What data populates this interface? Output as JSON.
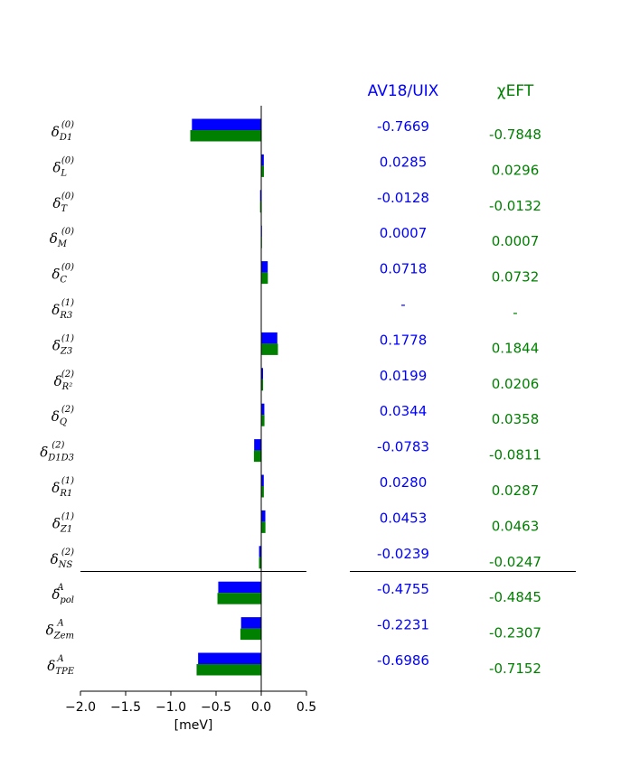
{
  "chart_data": {
    "type": "bar",
    "orientation": "horizontal",
    "categories": [
      {
        "sym": "δ",
        "sup": "(0)",
        "sub": "D1"
      },
      {
        "sym": "δ",
        "sup": "(0)",
        "sub": "L"
      },
      {
        "sym": "δ",
        "sup": "(0)",
        "sub": "T"
      },
      {
        "sym": "δ",
        "sup": "(0)",
        "sub": "M"
      },
      {
        "sym": "δ",
        "sup": "(0)",
        "sub": "C"
      },
      {
        "sym": "δ",
        "sup": "(1)",
        "sub": "R3"
      },
      {
        "sym": "δ",
        "sup": "(1)",
        "sub": "Z3"
      },
      {
        "sym": "δ",
        "sup": "(2)",
        "sub": "R²"
      },
      {
        "sym": "δ",
        "sup": "(2)",
        "sub": "Q"
      },
      {
        "sym": "δ",
        "sup": "(2)",
        "sub": "D1D3"
      },
      {
        "sym": "δ",
        "sup": "(1)",
        "sub": "R1"
      },
      {
        "sym": "δ",
        "sup": "(1)",
        "sub": "Z1"
      },
      {
        "sym": "δ",
        "sup": "(2)",
        "sub": "NS"
      },
      {
        "sym": "δ",
        "sup": "A",
        "sub": "pol"
      },
      {
        "sym": "δ",
        "sup": "A",
        "sub": "Zem"
      },
      {
        "sym": "δ",
        "sup": "A",
        "sub": "TPE"
      }
    ],
    "series": [
      {
        "name": "AV18/UIX",
        "color": "#0000ff",
        "values": [
          -0.7669,
          0.0285,
          -0.0128,
          0.0007,
          0.0718,
          null,
          0.1778,
          0.0199,
          0.0344,
          -0.0783,
          0.028,
          0.0453,
          -0.0239,
          -0.4755,
          -0.2231,
          -0.6986
        ],
        "labels": [
          "-0.7669",
          "0.0285",
          "-0.0128",
          "0.0007",
          "0.0718",
          "-",
          "0.1778",
          "0.0199",
          "0.0344",
          "-0.0783",
          "0.0280",
          "0.0453",
          "-0.0239",
          "-0.4755",
          "-0.2231",
          "-0.6986"
        ]
      },
      {
        "name": "χEFT",
        "color": "#008000",
        "values": [
          -0.7848,
          0.0296,
          -0.0132,
          0.0007,
          0.0732,
          null,
          0.1844,
          0.0206,
          0.0358,
          -0.0811,
          0.0287,
          0.0463,
          -0.0247,
          -0.4845,
          -0.2307,
          -0.7152
        ],
        "labels": [
          "-0.7848",
          "0.0296",
          "-0.0132",
          "0.0007",
          "0.0732",
          "-",
          "0.1844",
          "0.0206",
          "0.0358",
          "-0.0811",
          "0.0287",
          "0.0463",
          "-0.0247",
          "-0.4845",
          "-0.2307",
          "-0.7152"
        ]
      }
    ],
    "xlim": [
      -2.0,
      0.5
    ],
    "xticks": [
      "−2.0",
      "−1.5",
      "−1.0",
      "−0.5",
      "0.0",
      "0.5"
    ],
    "xtick_values": [
      -2.0,
      -1.5,
      -1.0,
      -0.5,
      0.0,
      0.5
    ],
    "xlabel": "[meV]",
    "ylabel": "",
    "title": "",
    "separator_after_index": 12,
    "grid": false,
    "legend": "none"
  },
  "table": {
    "headers": [
      "AV18/UIX",
      "χEFT"
    ]
  }
}
